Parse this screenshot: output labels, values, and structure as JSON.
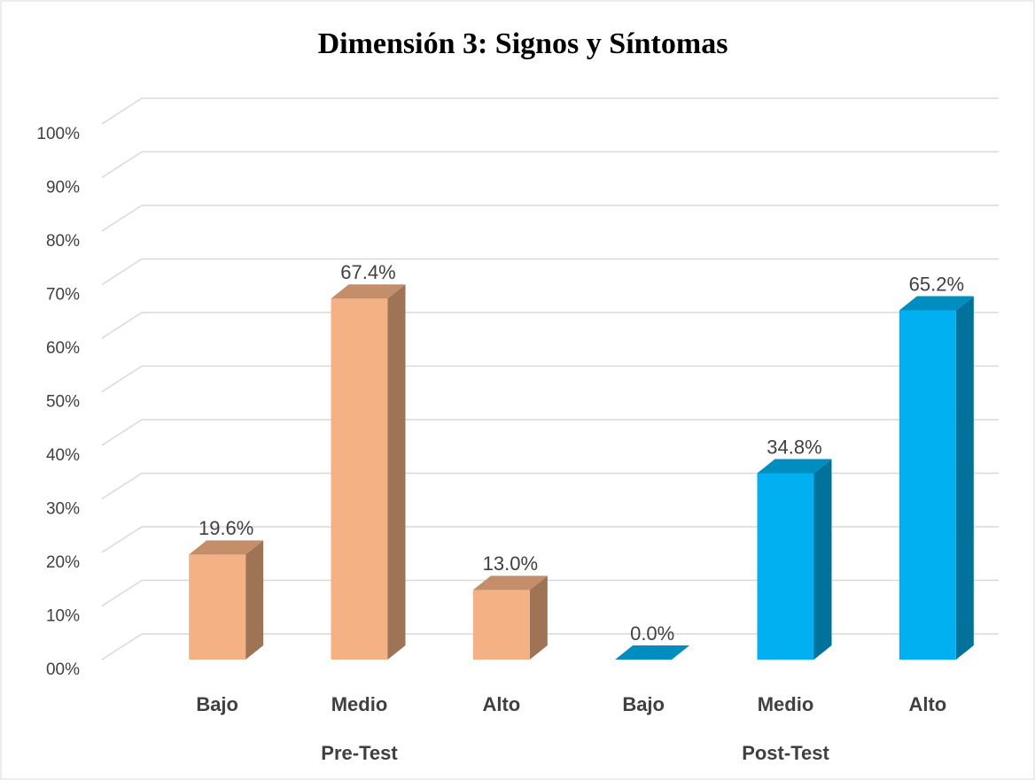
{
  "chart_data": {
    "type": "bar3d",
    "title": "Dimensión 3: Signos y Síntomas",
    "categories": [
      "Bajo",
      "Medio",
      "Alto",
      "Bajo",
      "Medio",
      "Alto"
    ],
    "group_labels": [
      "Pre-Test",
      "Post-Test"
    ],
    "values": [
      19.6,
      67.4,
      13.0,
      0.0,
      34.8,
      65.2
    ],
    "value_labels": [
      "19.6%",
      "67.4%",
      "13.0%",
      "0.0%",
      "34.8%",
      "65.2%"
    ],
    "colors": [
      "#f4b183",
      "#f4b183",
      "#f4b183",
      "#00b0f0",
      "#00b0f0",
      "#00b0f0"
    ],
    "ylim": [
      0,
      100
    ],
    "yticks": [
      {
        "value": 0,
        "label": "00%"
      },
      {
        "value": 10,
        "label": "10%"
      },
      {
        "value": 20,
        "label": "20%"
      },
      {
        "value": 30,
        "label": "30%"
      },
      {
        "value": 40,
        "label": "40%"
      },
      {
        "value": 50,
        "label": "50%"
      },
      {
        "value": 60,
        "label": "60%"
      },
      {
        "value": 70,
        "label": "70%"
      },
      {
        "value": 80,
        "label": "80%"
      },
      {
        "value": 90,
        "label": "90%"
      },
      {
        "value": 100,
        "label": "100%"
      }
    ],
    "grid": true
  }
}
